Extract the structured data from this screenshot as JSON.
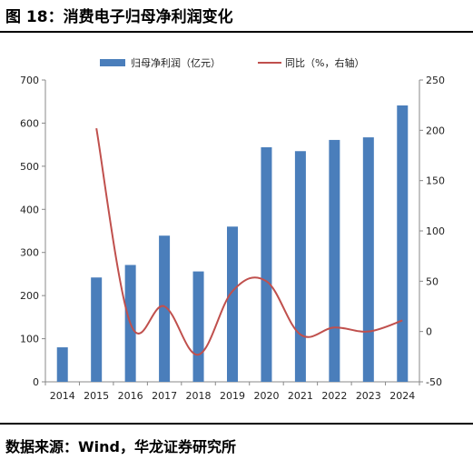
{
  "figure": {
    "title": "图 18：消费电子归母净利润变化",
    "source": "数据来源：Wind，华龙证券研究所"
  },
  "chart_data": {
    "type": "bar",
    "categories": [
      "2014",
      "2015",
      "2016",
      "2017",
      "2018",
      "2019",
      "2020",
      "2021",
      "2022",
      "2023",
      "2024"
    ],
    "series": [
      {
        "name": "归母净利润（亿元）",
        "type": "bar",
        "axis": "left",
        "color": "#4a7ebb",
        "values": [
          80,
          242,
          271,
          339,
          256,
          360,
          544,
          535,
          561,
          567,
          641
        ]
      },
      {
        "name": "同比（%，右轴）",
        "type": "line",
        "axis": "right",
        "color": "#c0504d",
        "values": [
          null,
          202,
          8,
          25,
          -23,
          40,
          50,
          -3,
          4,
          0,
          11
        ]
      }
    ],
    "y_left": {
      "lim": [
        0,
        700
      ],
      "ticks": [
        "0",
        "100",
        "200",
        "300",
        "400",
        "500",
        "600",
        "700"
      ]
    },
    "y_right": {
      "lim": [
        -50,
        250
      ],
      "ticks": [
        "-50",
        "0",
        "50",
        "100",
        "150",
        "200",
        "250"
      ]
    },
    "legend_position": "top",
    "grid": false
  }
}
